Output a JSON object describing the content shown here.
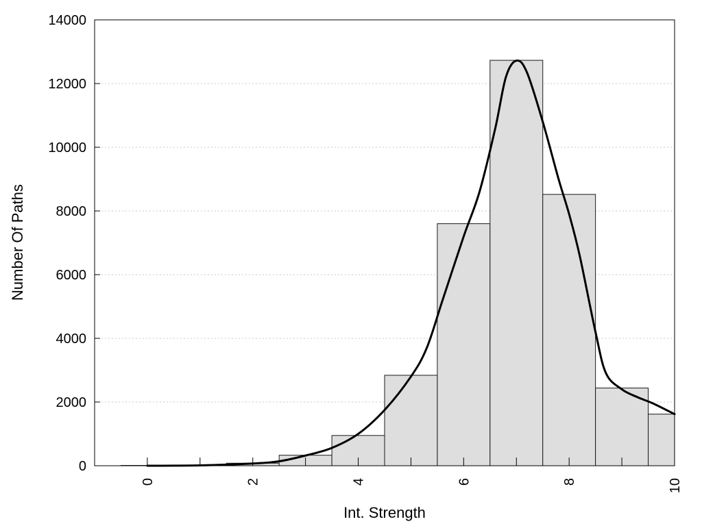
{
  "chart_data": {
    "type": "bar",
    "subtype": "histogram",
    "xlabel": "Int. Strength",
    "ylabel": "Number Of Paths",
    "xlim": [
      -1,
      10
    ],
    "ylim": [
      0,
      14000
    ],
    "x_ticks": [
      0,
      2,
      4,
      6,
      8,
      10
    ],
    "y_ticks": [
      0,
      2000,
      4000,
      6000,
      8000,
      10000,
      12000,
      14000
    ],
    "grid": "horizontal-dotted",
    "legend": "none",
    "bins": [
      {
        "x0": -0.5,
        "x1": 0.5,
        "value": 10
      },
      {
        "x0": 0.5,
        "x1": 1.5,
        "value": 20
      },
      {
        "x0": 1.5,
        "x1": 2.5,
        "value": 80
      },
      {
        "x0": 2.5,
        "x1": 3.5,
        "value": 330
      },
      {
        "x0": 3.5,
        "x1": 4.5,
        "value": 950
      },
      {
        "x0": 4.5,
        "x1": 5.5,
        "value": 2840
      },
      {
        "x0": 5.5,
        "x1": 6.5,
        "value": 7600
      },
      {
        "x0": 6.5,
        "x1": 7.5,
        "value": 12730
      },
      {
        "x0": 7.5,
        "x1": 8.5,
        "value": 8520
      },
      {
        "x0": 8.5,
        "x1": 9.5,
        "value": 2440
      },
      {
        "x0": 9.5,
        "x1": 10.0,
        "value": 1620
      }
    ],
    "density_curve": {
      "x": [
        0,
        1,
        2,
        2.5,
        3,
        3.5,
        4,
        4.5,
        5,
        5.3,
        5.6,
        6,
        6.3,
        6.6,
        6.8,
        7,
        7.2,
        7.5,
        7.8,
        8,
        8.2,
        8.5,
        8.7,
        9,
        9.3,
        9.6,
        10
      ],
      "y": [
        0,
        10,
        70,
        140,
        320,
        560,
        1000,
        1750,
        2800,
        3700,
        5200,
        7200,
        8600,
        10600,
        12200,
        12720,
        12350,
        10800,
        9000,
        7900,
        6600,
        4200,
        2900,
        2400,
        2150,
        1950,
        1620
      ]
    },
    "colors": {
      "bar_fill": "#dedede",
      "bar_stroke": "#1a1a1a",
      "curve": "#000000",
      "grid": "#c8c8c8",
      "frame": "#000000"
    }
  }
}
